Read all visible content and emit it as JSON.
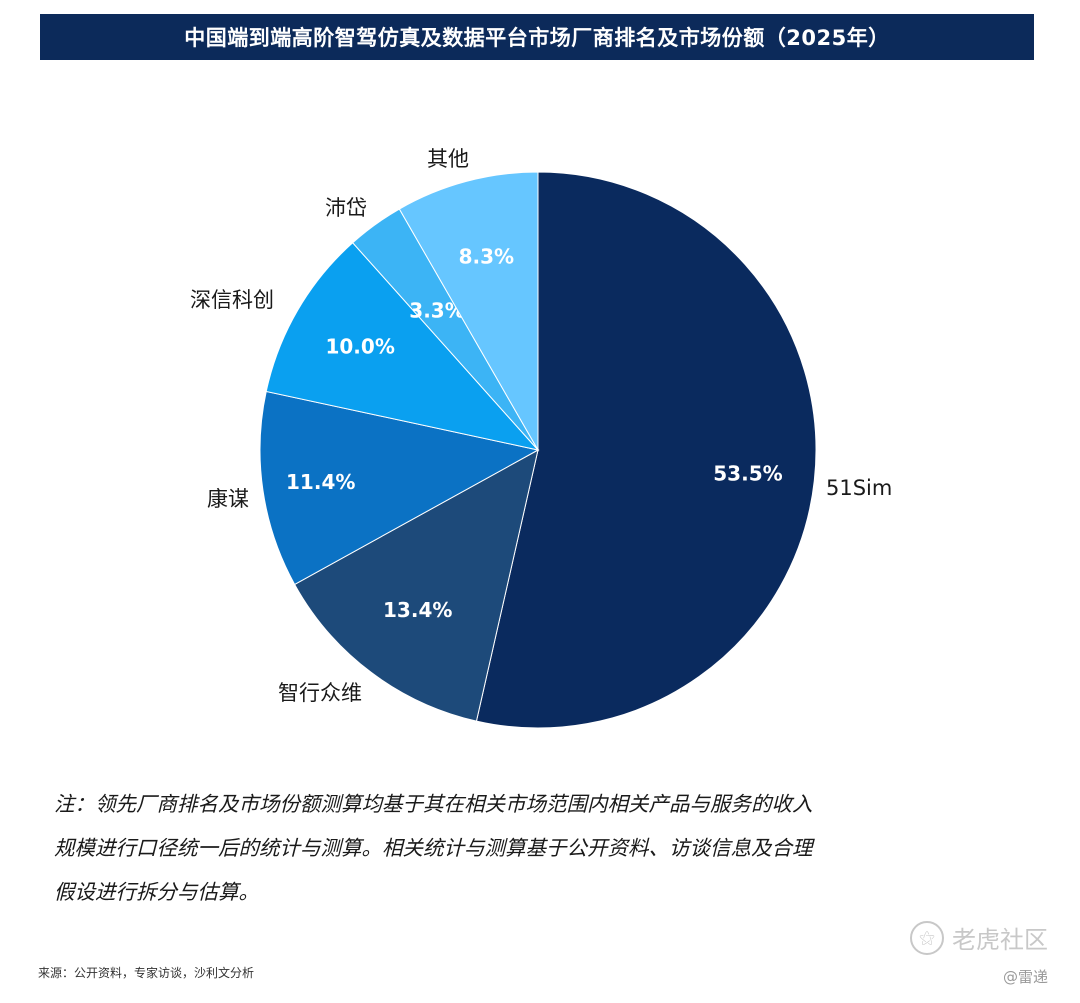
{
  "title": "中国端到端高阶智驾仿真及数据平台市场厂商排名及市场份额（2025年）",
  "chart_data": {
    "type": "pie",
    "title": "中国端到端高阶智驾仿真及数据平台市场厂商排名及市场份额（2025年）",
    "unit": "%",
    "slices": [
      {
        "label": "51Sim",
        "value": 53.5,
        "display": "53.5%",
        "color": "#0a2a5e"
      },
      {
        "label": "智行众维",
        "value": 13.4,
        "display": "13.4%",
        "color": "#1d4a7a"
      },
      {
        "label": "康谋",
        "value": 11.4,
        "display": "11.4%",
        "color": "#0b72c4"
      },
      {
        "label": "深信科创",
        "value": 10.0,
        "display": "10.0%",
        "color": "#0aa0f0"
      },
      {
        "label": "沛岱",
        "value": 3.3,
        "display": "3.3%",
        "color": "#3cb4f5"
      },
      {
        "label": "其他",
        "value": 8.3,
        "display": "8.3%",
        "color": "#66c6ff"
      }
    ]
  },
  "note": {
    "line1": "注：领先厂商排名及市场份额测算均基于其在相关市场范围内相关产品与服务的收入",
    "line2": "规模进行口径统一后的统计与测算。相关统计与测算基于公开资料、访谈信息及合理",
    "line3": "假设进行拆分与估算。"
  },
  "source": "来源：公开资料，专家访谈，沙利文分析",
  "watermark": {
    "icon": "tiger-logo-icon",
    "text": "老虎社区"
  },
  "author": "@雷递"
}
